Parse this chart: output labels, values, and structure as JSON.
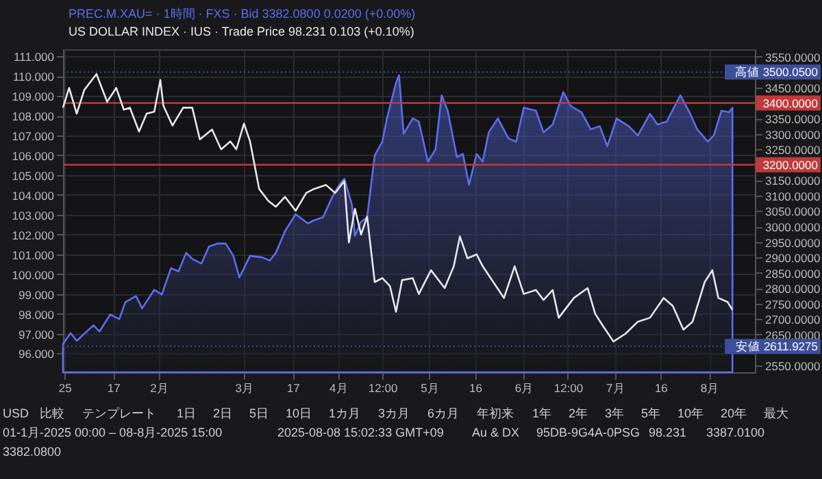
{
  "chart_data": {
    "type": "line",
    "series": [
      {
        "name": "PREC.M.XAU= · 1時間 · FXS · Bid  3382.0800  0.0200 (+0.00%)",
        "type": "area",
        "axis": "y2",
        "color": "#5a6ff0",
        "x": [
          "2024-12-31T12:00",
          "2025-01-03",
          "2025-01-05",
          "2025-01-10T12:00",
          "2025-01-12T12:00",
          "2025-01-16",
          "2025-01-19",
          "2025-01-21",
          "2025-01-24T12:00",
          "2025-01-26T12:00",
          "2025-01-30T12:00",
          "2025-02-02",
          "2025-02-05",
          "2025-02-07T12:00",
          "2025-02-10",
          "2025-02-12",
          "2025-02-15",
          "2025-02-17T12:00",
          "2025-02-20T12:00",
          "2025-02-23",
          "2025-02-25T12:00",
          "2025-02-27T12:00",
          "2025-03-03",
          "2025-03-07",
          "2025-03-09T12:00",
          "2025-03-11T12:00",
          "2025-03-14T12:00",
          "2025-03-18",
          "2025-03-22",
          "2025-03-24",
          "2025-03-27",
          "2025-03-30",
          "2025-04-01",
          "2025-04-03",
          "2025-04-05T12:00",
          "2025-04-06T12:00",
          "2025-04-08T12:00",
          "2025-04-10T12:00",
          "2025-04-13",
          "2025-04-15T12:00",
          "2025-04-17",
          "2025-04-20",
          "2025-04-21",
          "2025-04-22T12:00",
          "2025-04-25T12:00",
          "2025-04-27T12:00",
          "2025-04-30T12:00",
          "2025-05-03",
          "2025-05-05",
          "2025-05-07",
          "2025-05-10",
          "2025-05-12",
          "2025-05-14",
          "2025-05-16T12:00",
          "2025-05-18T12:00",
          "2025-05-20T12:00",
          "2025-05-23T12:00",
          "2025-05-27",
          "2025-05-29T12:00",
          "2025-06-01",
          "2025-06-05",
          "2025-06-07T12:00",
          "2025-06-10T12:00",
          "2025-06-14",
          "2025-06-16T12:00",
          "2025-06-20",
          "2025-06-23",
          "2025-06-26",
          "2025-06-28T12:00",
          "2025-07-01T12:00",
          "2025-07-05T12:00",
          "2025-07-08T12:00",
          "2025-07-12T12:00",
          "2025-07-15",
          "2025-07-18",
          "2025-07-22T12:00",
          "2025-07-25T12:00",
          "2025-07-28",
          "2025-07-31T12:00",
          "2025-08-02T12:00",
          "2025-08-05",
          "2025-08-07T12:00",
          "2025-08-08T15:00"
        ],
        "values": [
          2620,
          2655,
          2630,
          2680,
          2660,
          2715,
          2700,
          2755,
          2775,
          2735,
          2795,
          2780,
          2865,
          2855,
          2915,
          2895,
          2880,
          2935,
          2945,
          2945,
          2905,
          2835,
          2905,
          2900,
          2890,
          2915,
          2985,
          3040,
          3010,
          3020,
          3030,
          3095,
          3130,
          3155,
          3070,
          2970,
          3015,
          3030,
          3230,
          3275,
          3350,
          3465,
          3490,
          3300,
          3350,
          3340,
          3210,
          3250,
          3425,
          3375,
          3225,
          3235,
          3135,
          3235,
          3210,
          3305,
          3350,
          3285,
          3275,
          3385,
          3375,
          3305,
          3330,
          3435,
          3390,
          3370,
          3315,
          3325,
          3260,
          3350,
          3325,
          3295,
          3365,
          3330,
          3340,
          3425,
          3370,
          3315,
          3275,
          3295,
          3375,
          3370,
          3385
        ]
      },
      {
        "name": "US DOLLAR INDEX · IUS · Trade Price  98.231  0.103 (+0.10%)",
        "axis": "y",
        "color": "#e8e8e8",
        "x": [
          "2024-12-31T12:00",
          "2025-01-02T12:00",
          "2025-01-05",
          "2025-01-07T12:00",
          "2025-01-11T12:00",
          "2025-01-15",
          "2025-01-18",
          "2025-01-20T12:00",
          "2025-01-22T12:00",
          "2025-01-25T12:00",
          "2025-01-28",
          "2025-01-30T12:00",
          "2025-02-01T12:00",
          "2025-02-02T12:00",
          "2025-02-05T12:00",
          "2025-02-09",
          "2025-02-12",
          "2025-02-14T12:00",
          "2025-02-18T12:00",
          "2025-02-21T12:00",
          "2025-02-24T12:00",
          "2025-02-26T12:00",
          "2025-03-01",
          "2025-03-03",
          "2025-03-06",
          "2025-03-09",
          "2025-03-11T12:00",
          "2025-03-14T12:00",
          "2025-03-18",
          "2025-03-21T12:00",
          "2025-03-24",
          "2025-03-28",
          "2025-03-31",
          "2025-04-03",
          "2025-04-04T12:00",
          "2025-04-06T12:00",
          "2025-04-08T12:00",
          "2025-04-10T12:00",
          "2025-04-13",
          "2025-04-15T12:00",
          "2025-04-18",
          "2025-04-20",
          "2025-04-22",
          "2025-04-25T12:00",
          "2025-04-27T12:00",
          "2025-05-01T12:00",
          "2025-05-06",
          "2025-05-09",
          "2025-05-11",
          "2025-05-13T12:00",
          "2025-05-16T12:00",
          "2025-05-18T12:00",
          "2025-05-22",
          "2025-05-25T12:00",
          "2025-05-29",
          "2025-06-01",
          "2025-06-05",
          "2025-06-07T12:00",
          "2025-06-10T12:00",
          "2025-06-12T12:00",
          "2025-06-17T12:00",
          "2025-06-22",
          "2025-06-24T12:00",
          "2025-06-27",
          "2025-06-30T12:00",
          "2025-07-04T12:00",
          "2025-07-08T12:00",
          "2025-07-12T12:00",
          "2025-07-17",
          "2025-07-20",
          "2025-07-23T12:00",
          "2025-07-26T12:00",
          "2025-07-30T12:00",
          "2025-08-02",
          "2025-08-04",
          "2025-08-07",
          "2025-08-08T15:00"
        ],
        "values": [
          108.4,
          109.4,
          108.1,
          109.3,
          110.1,
          108.7,
          109.4,
          108.3,
          108.4,
          107.2,
          108.1,
          108.2,
          109.8,
          108.5,
          107.5,
          108.4,
          108.4,
          106.8,
          107.3,
          106.3,
          106.7,
          106.3,
          107.6,
          106.7,
          104.3,
          103.7,
          103.4,
          103.9,
          103.2,
          104.1,
          104.3,
          104.5,
          104.1,
          104.7,
          101.6,
          103.3,
          102.0,
          102.9,
          99.6,
          99.8,
          99.4,
          98.1,
          99.7,
          99.8,
          99.0,
          100.2,
          99.3,
          100.4,
          101.9,
          100.8,
          101.0,
          100.4,
          99.6,
          98.8,
          100.4,
          99.0,
          99.2,
          98.7,
          99.2,
          97.8,
          98.8,
          99.3,
          98.0,
          97.4,
          96.6,
          97.0,
          97.6,
          97.8,
          98.8,
          98.4,
          97.2,
          97.6,
          99.6,
          100.2,
          98.8,
          98.6,
          98.2
        ]
      }
    ],
    "xlim": [
      "2024-12-31T12:00",
      "2025-08-16"
    ],
    "xticks": [
      {
        "value": "2025-01-01",
        "label": "25"
      },
      {
        "value": "2025-01-17",
        "label": "17"
      },
      {
        "value": "2025-02-01",
        "label": "2月"
      },
      {
        "value": "2025-03-01",
        "label": "3月"
      },
      {
        "value": "2025-03-17",
        "label": "17"
      },
      {
        "value": "2025-04-01",
        "label": "4月"
      },
      {
        "value": "2025-04-15T12:00",
        "label": "12:00"
      },
      {
        "value": "2025-05-01",
        "label": "5月"
      },
      {
        "value": "2025-05-16",
        "label": "16"
      },
      {
        "value": "2025-06-01",
        "label": "6月"
      },
      {
        "value": "2025-06-15T12:00",
        "label": "12:00"
      },
      {
        "value": "2025-07-01",
        "label": "7月"
      },
      {
        "value": "2025-07-16",
        "label": "16"
      },
      {
        "value": "2025-08-01",
        "label": "8月"
      }
    ],
    "ylim": [
      95.05,
      111.35
    ],
    "yticks": [
      {
        "value": 96,
        "label": "96.000"
      },
      {
        "value": 97,
        "label": "97.000"
      },
      {
        "value": 98,
        "label": "98.000"
      },
      {
        "value": 99,
        "label": "99.000"
      },
      {
        "value": 100,
        "label": "100.000"
      },
      {
        "value": 101,
        "label": "101.000"
      },
      {
        "value": 102,
        "label": "102.000"
      },
      {
        "value": 103,
        "label": "103.000"
      },
      {
        "value": 104,
        "label": "104.000"
      },
      {
        "value": 105,
        "label": "105.000"
      },
      {
        "value": 106,
        "label": "106.000"
      },
      {
        "value": 107,
        "label": "107.000"
      },
      {
        "value": 108,
        "label": "108.000"
      },
      {
        "value": 109,
        "label": "109.000"
      },
      {
        "value": 110,
        "label": "110.000"
      },
      {
        "value": 111,
        "label": "111.000"
      }
    ],
    "y2lim": [
      2528,
      3574
    ],
    "y2ticks": [
      {
        "value": 2550,
        "label": "2550.0000"
      },
      {
        "value": 2650,
        "label": "2650.0000"
      },
      {
        "value": 2700,
        "label": "2700.0000"
      },
      {
        "value": 2750,
        "label": "2750.0000"
      },
      {
        "value": 2800,
        "label": "2800.0000"
      },
      {
        "value": 2850,
        "label": "2850.0000"
      },
      {
        "value": 2900,
        "label": "2900.0000"
      },
      {
        "value": 2950,
        "label": "2950.0000"
      },
      {
        "value": 3000,
        "label": "3000.0000"
      },
      {
        "value": 3050,
        "label": "3050.0000"
      },
      {
        "value": 3100,
        "label": "3100.0000"
      },
      {
        "value": 3150,
        "label": "3150.0000"
      },
      {
        "value": 3250,
        "label": "3250.0000"
      },
      {
        "value": 3300,
        "label": "3300.0000"
      },
      {
        "value": 3350,
        "label": "3350.0000"
      },
      {
        "value": 3450,
        "label": "3450.0000"
      },
      {
        "value": 3550,
        "label": "3550.0000"
      }
    ],
    "ref_lines": [
      {
        "axis": "y2",
        "value": 3400,
        "label": "3400.0000",
        "color": "#c0393b"
      },
      {
        "axis": "y2",
        "value": 3200,
        "label": "3200.0000",
        "color": "#c0393b"
      },
      {
        "axis": "y2",
        "value": 3500.05,
        "label": "高値 3500.0500",
        "color": "#3d4f9a",
        "line_style": "dotted"
      },
      {
        "axis": "y2",
        "value": 2611.9275,
        "label": "安値 2611.9275",
        "color": "#3d4f9a",
        "line_style": "dotted"
      }
    ],
    "grid": true,
    "legend": "top left",
    "annotations": [
      "USD",
      "比較",
      "テンプレート",
      "1日",
      "2日",
      "5日",
      "10日",
      "1カ月",
      "3カ月",
      "6カ月",
      "年初来",
      "1年",
      "2年",
      "3年",
      "5年",
      "10年",
      "20年",
      "最大",
      "01-1月-2025 00:00 – 08-8月-2025 15:00",
      "2025-08-08 15:02:33 GMT+09",
      "Au & DX",
      "95DB-9G4A-0PSG",
      "98.231",
      "3387.0100",
      "3382.0800"
    ]
  }
}
